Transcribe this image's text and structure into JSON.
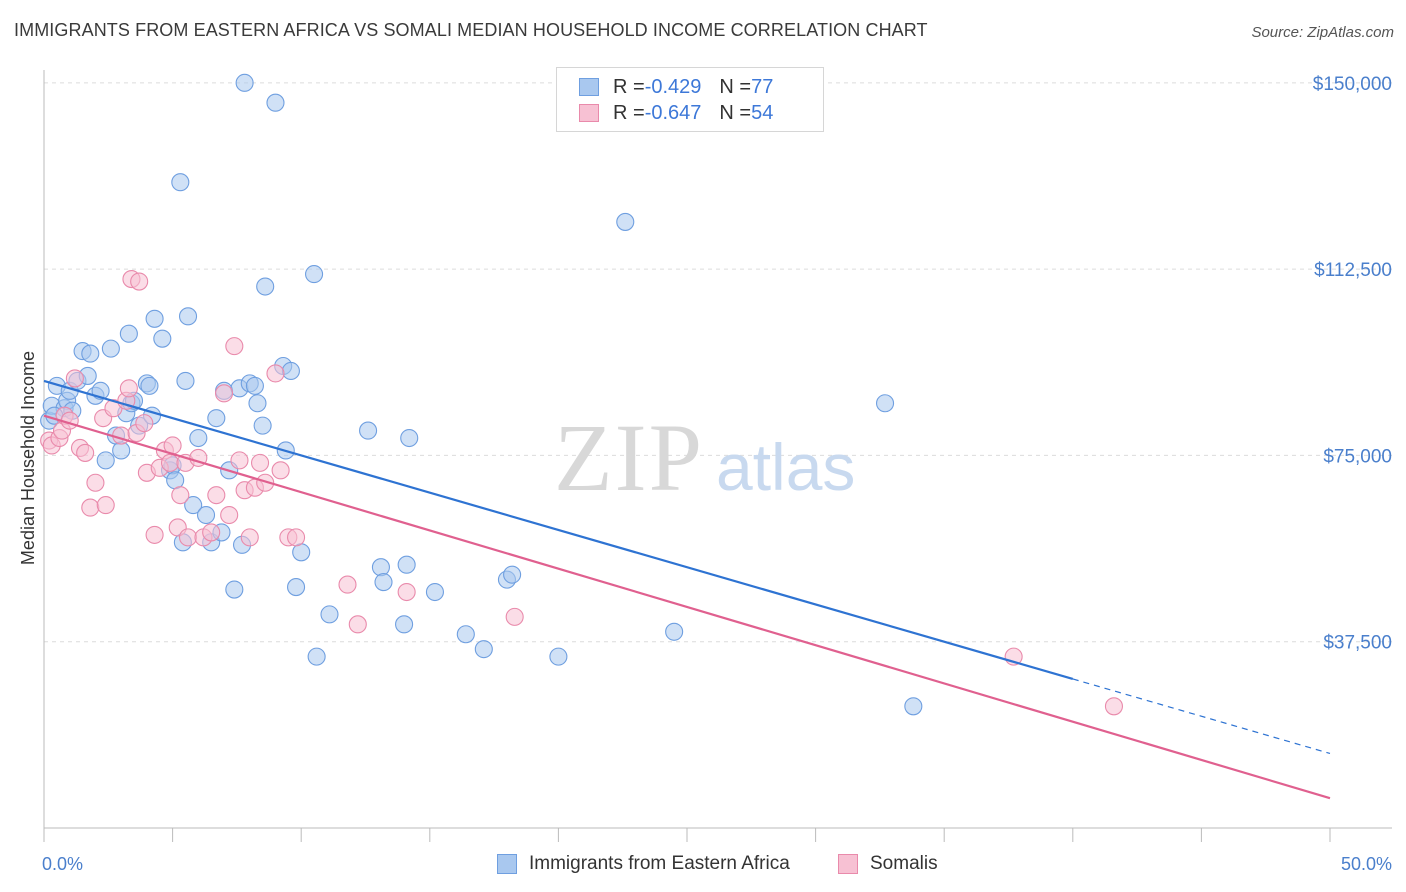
{
  "title": "IMMIGRANTS FROM EASTERN AFRICA VS SOMALI MEDIAN HOUSEHOLD INCOME CORRELATION CHART",
  "source": "Source: ZipAtlas.com",
  "watermark": {
    "zip": "ZIP",
    "atlas": "atlas"
  },
  "stats": [
    {
      "r_label": "R = ",
      "r_value": "-0.429",
      "n_label": "N = ",
      "n_value": "77",
      "color": "#a9c8ef",
      "border": "#6f9fe0"
    },
    {
      "r_label": "R = ",
      "r_value": "-0.647",
      "n_label": "N = ",
      "n_value": "54",
      "color": "#f7c1d3",
      "border": "#e98aab"
    }
  ],
  "legend": [
    {
      "label": "Immigrants from Eastern Africa",
      "color": "#a9c8ef",
      "border": "#6f9fe0"
    },
    {
      "label": "Somalis",
      "color": "#f7c1d3",
      "border": "#e98aab"
    }
  ],
  "chart_data": {
    "type": "scatter",
    "title": "IMMIGRANTS FROM EASTERN AFRICA VS SOMALI MEDIAN HOUSEHOLD INCOME CORRELATION CHART",
    "xlabel": "",
    "ylabel": "Median Household Income",
    "xlim": [
      0,
      50
    ],
    "ylim": [
      0,
      155000
    ],
    "x_tick_labels": [
      "0.0%",
      "50.0%"
    ],
    "y_ticks": [
      37500,
      75000,
      112500,
      150000
    ],
    "y_tick_labels": [
      "$37,500",
      "$75,000",
      "$112,500",
      "$150,000"
    ],
    "grid": true,
    "series": [
      {
        "name": "Immigrants from Eastern Africa",
        "color": "#a9c8ef",
        "edge": "#6f9fe0",
        "trend_color": "#2e73d2",
        "trend": {
          "x0": 0,
          "y0": 90000,
          "x1": 40,
          "y1": 30000,
          "dash_x1": 50,
          "dash_y1": 15000
        },
        "points": [
          [
            0.2,
            82000
          ],
          [
            0.3,
            85000
          ],
          [
            0.5,
            89000
          ],
          [
            0.8,
            84500
          ],
          [
            0.9,
            86000
          ],
          [
            1.0,
            88000
          ],
          [
            1.3,
            90000
          ],
          [
            1.5,
            96000
          ],
          [
            1.7,
            91000
          ],
          [
            1.8,
            95500
          ],
          [
            2.0,
            87000
          ],
          [
            2.2,
            88000
          ],
          [
            2.4,
            74000
          ],
          [
            2.6,
            96500
          ],
          [
            2.8,
            79000
          ],
          [
            3.0,
            76000
          ],
          [
            3.2,
            83500
          ],
          [
            3.3,
            99500
          ],
          [
            3.4,
            85500
          ],
          [
            3.5,
            86000
          ],
          [
            3.7,
            81000
          ],
          [
            4.0,
            89500
          ],
          [
            4.1,
            89000
          ],
          [
            4.2,
            83000
          ],
          [
            4.3,
            102500
          ],
          [
            4.6,
            98500
          ],
          [
            4.9,
            72000
          ],
          [
            5.0,
            73000
          ],
          [
            5.1,
            70000
          ],
          [
            5.4,
            57500
          ],
          [
            5.5,
            90000
          ],
          [
            5.6,
            103000
          ],
          [
            5.8,
            65000
          ],
          [
            6.0,
            78500
          ],
          [
            6.3,
            63000
          ],
          [
            6.5,
            57500
          ],
          [
            6.7,
            82500
          ],
          [
            6.9,
            59500
          ],
          [
            7.0,
            88000
          ],
          [
            7.2,
            72000
          ],
          [
            7.4,
            48000
          ],
          [
            7.6,
            88500
          ],
          [
            7.7,
            57000
          ],
          [
            8.0,
            89500
          ],
          [
            8.2,
            89000
          ],
          [
            8.3,
            85500
          ],
          [
            8.5,
            81000
          ],
          [
            8.6,
            109000
          ],
          [
            9.0,
            146000
          ],
          [
            9.3,
            93000
          ],
          [
            9.4,
            76000
          ],
          [
            9.6,
            92000
          ],
          [
            9.8,
            48500
          ],
          [
            10.0,
            55500
          ],
          [
            10.5,
            111500
          ],
          [
            10.6,
            34500
          ],
          [
            11.1,
            43000
          ],
          [
            12.6,
            80000
          ],
          [
            13.1,
            52500
          ],
          [
            13.2,
            49500
          ],
          [
            14.0,
            41000
          ],
          [
            14.1,
            53000
          ],
          [
            14.2,
            78500
          ],
          [
            15.2,
            47500
          ],
          [
            16.4,
            39000
          ],
          [
            17.1,
            36000
          ],
          [
            18.0,
            50000
          ],
          [
            18.2,
            51000
          ],
          [
            20.0,
            34500
          ],
          [
            22.6,
            122000
          ],
          [
            24.5,
            39500
          ],
          [
            32.7,
            85500
          ],
          [
            33.8,
            24500
          ],
          [
            5.3,
            130000
          ],
          [
            7.8,
            150000
          ],
          [
            0.4,
            83000
          ],
          [
            1.1,
            84000
          ]
        ]
      },
      {
        "name": "Somalis",
        "color": "#f7c1d3",
        "edge": "#e98aab",
        "trend_color": "#e0608f",
        "trend": {
          "x0": 0,
          "y0": 83000,
          "x1": 50,
          "y1": 6000
        },
        "points": [
          [
            0.2,
            78000
          ],
          [
            0.3,
            77000
          ],
          [
            0.6,
            78500
          ],
          [
            0.7,
            80000
          ],
          [
            0.8,
            83000
          ],
          [
            1.0,
            82000
          ],
          [
            1.2,
            90500
          ],
          [
            1.4,
            76500
          ],
          [
            1.6,
            75500
          ],
          [
            1.8,
            64500
          ],
          [
            2.0,
            69500
          ],
          [
            2.3,
            82500
          ],
          [
            2.4,
            65000
          ],
          [
            2.7,
            84500
          ],
          [
            3.0,
            79000
          ],
          [
            3.2,
            86000
          ],
          [
            3.3,
            88500
          ],
          [
            3.4,
            110500
          ],
          [
            3.6,
            79500
          ],
          [
            3.7,
            110000
          ],
          [
            3.9,
            81500
          ],
          [
            4.0,
            71500
          ],
          [
            4.3,
            59000
          ],
          [
            4.5,
            72500
          ],
          [
            4.7,
            76000
          ],
          [
            4.9,
            73500
          ],
          [
            5.0,
            77000
          ],
          [
            5.2,
            60500
          ],
          [
            5.3,
            67000
          ],
          [
            5.5,
            73500
          ],
          [
            5.6,
            58500
          ],
          [
            6.0,
            74500
          ],
          [
            6.2,
            58500
          ],
          [
            6.5,
            59500
          ],
          [
            6.7,
            67000
          ],
          [
            7.0,
            87500
          ],
          [
            7.2,
            63000
          ],
          [
            7.4,
            97000
          ],
          [
            7.6,
            74000
          ],
          [
            7.8,
            68000
          ],
          [
            8.0,
            58500
          ],
          [
            8.2,
            68500
          ],
          [
            8.4,
            73500
          ],
          [
            8.6,
            69500
          ],
          [
            9.0,
            91500
          ],
          [
            9.2,
            72000
          ],
          [
            9.5,
            58500
          ],
          [
            9.8,
            58500
          ],
          [
            11.8,
            49000
          ],
          [
            12.2,
            41000
          ],
          [
            14.1,
            47500
          ],
          [
            18.3,
            42500
          ],
          [
            37.7,
            34500
          ],
          [
            41.6,
            24500
          ]
        ]
      }
    ]
  }
}
